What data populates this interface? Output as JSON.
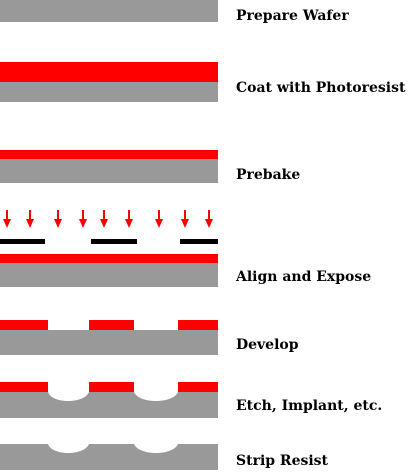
{
  "colors": {
    "wafer": "#999999",
    "photoresist": "#ff0000",
    "mask": "#000000",
    "exposure_arrow": "#ff0000",
    "background": "#ffffff"
  },
  "steps": [
    {
      "label": "Prepare Wafer"
    },
    {
      "label": "Coat with Photoresist"
    },
    {
      "label": "Prebake"
    },
    {
      "label": "Align and Expose"
    },
    {
      "label": "Develop"
    },
    {
      "label": "Etch, Implant, etc."
    },
    {
      "label": "Strip Resist"
    }
  ]
}
